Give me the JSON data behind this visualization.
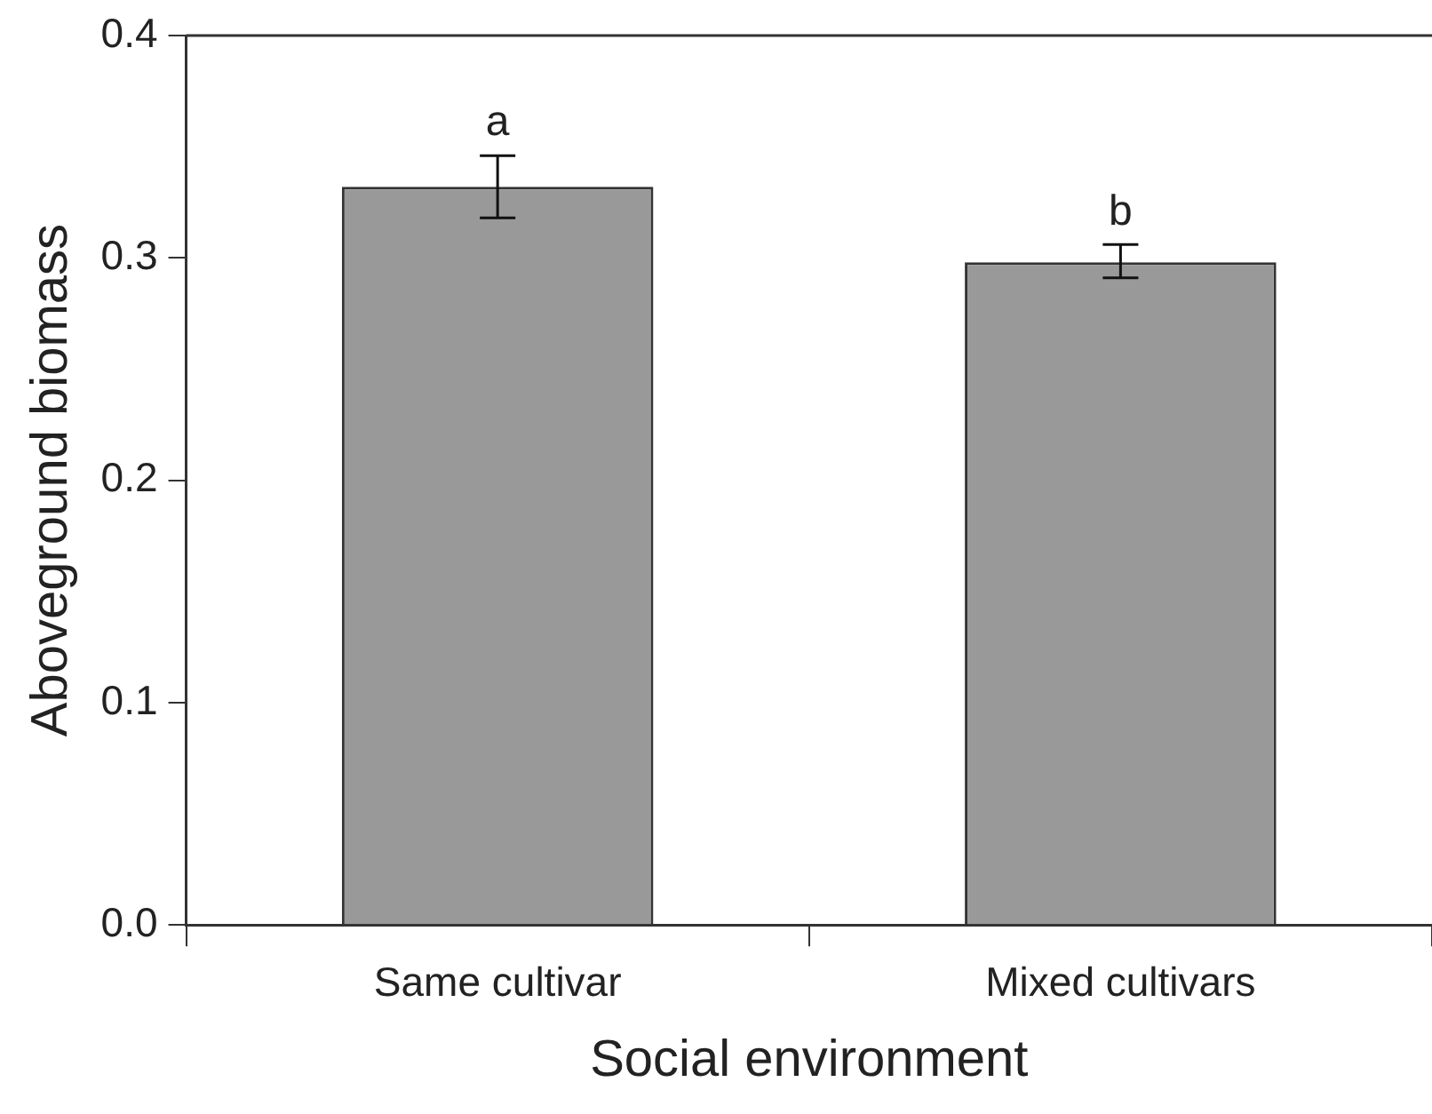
{
  "chart_data": {
    "type": "bar",
    "xlabel": "Social environment",
    "ylabel": "Aboveground biomass",
    "categories": [
      "Same cultivar",
      "Mixed cultivars"
    ],
    "values": [
      0.332,
      0.298
    ],
    "errors": [
      [
        0.318,
        0.346
      ],
      [
        0.291,
        0.306
      ]
    ],
    "color": "#999999",
    "ylim": [
      0,
      0.4
    ],
    "yticks": [
      {
        "value": 0,
        "label": "0.0"
      },
      0.1,
      0.2,
      0.3,
      0.4
    ],
    "grid": false,
    "legend": false,
    "annotations": [
      "a",
      "b"
    ]
  }
}
